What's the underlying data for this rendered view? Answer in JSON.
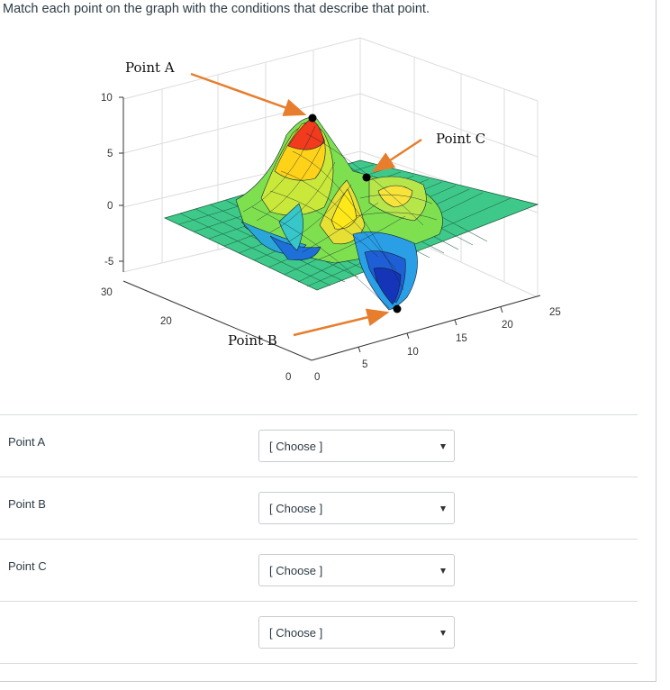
{
  "question": {
    "text": "Match each point on the graph with the conditions that describe that point."
  },
  "figure": {
    "annotations": {
      "point_a": "Point A",
      "point_b": "Point B",
      "point_c": "Point C"
    },
    "annotation_arrow_color": "#e67e2e",
    "z_ticks": [
      "10",
      "5",
      "0",
      "-5"
    ],
    "y_ticks": [
      "30",
      "20",
      "0"
    ],
    "x_ticks": [
      "0",
      "5",
      "10",
      "15",
      "20",
      "25"
    ]
  },
  "rows": [
    {
      "label": "Point A",
      "selected": "[ Choose ]"
    },
    {
      "label": "Point B",
      "selected": "[ Choose ]"
    },
    {
      "label": "Point C",
      "selected": "[ Choose ]"
    },
    {
      "label": "",
      "selected": "[ Choose ]"
    }
  ]
}
